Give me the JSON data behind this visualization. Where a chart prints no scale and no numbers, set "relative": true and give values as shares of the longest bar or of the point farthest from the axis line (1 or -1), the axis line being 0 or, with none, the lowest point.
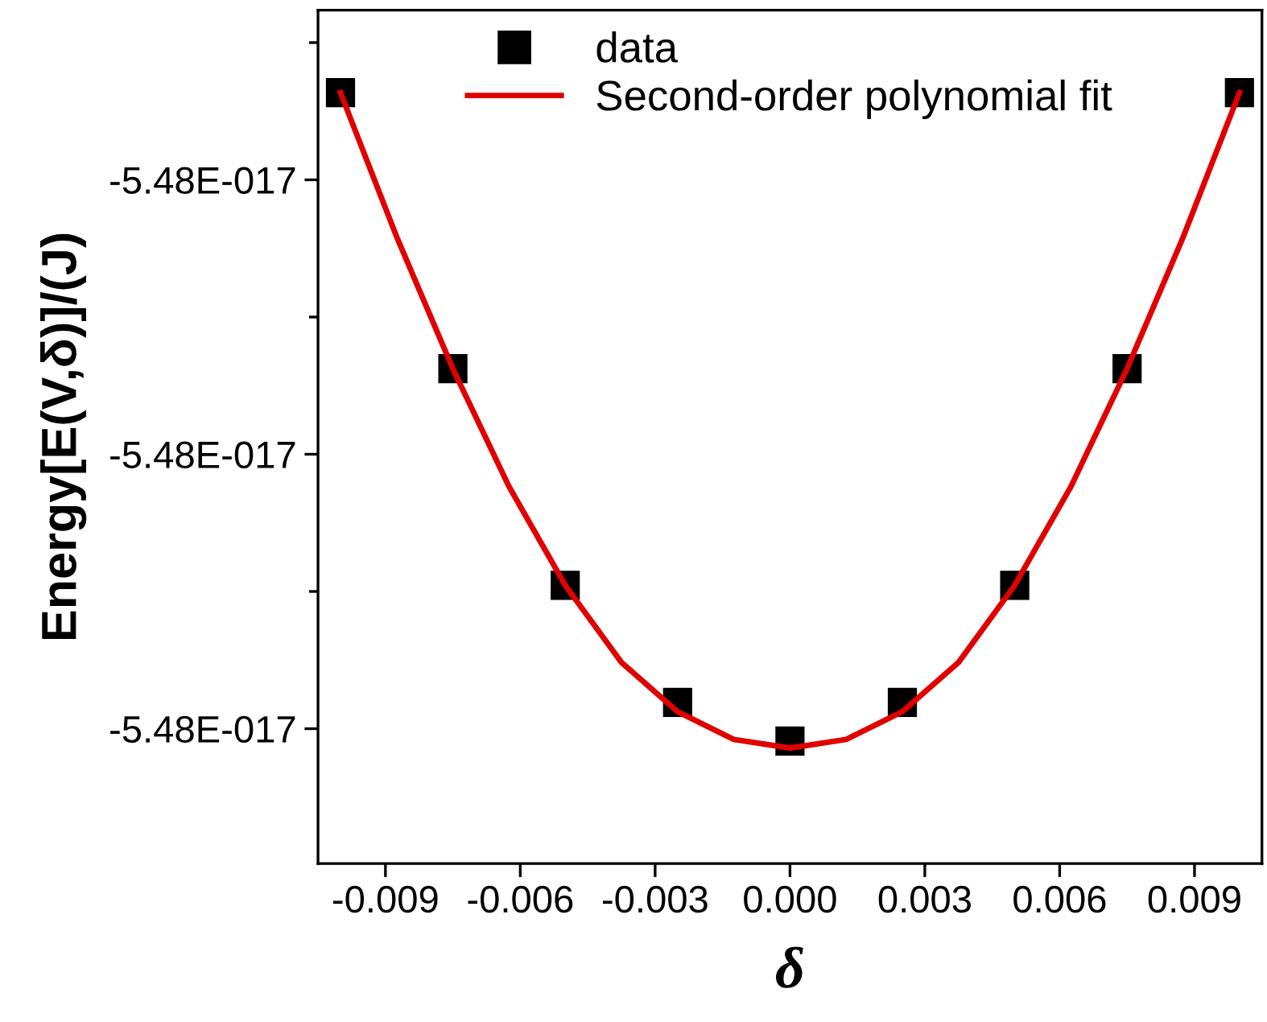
{
  "chart_data": {
    "type": "scatter",
    "relative": true,
    "xlabel": "δ",
    "ylabel": "Energy[E(V,δ)]/(J)",
    "annotations": [
      "-5.48E-017",
      "-5.48E-017",
      "-5.48E-017"
    ],
    "x": [
      -0.01,
      -0.0075,
      -0.005,
      -0.0025,
      0.0,
      0.0025,
      0.005,
      0.0075,
      0.01
    ],
    "series": [
      {
        "name": "data",
        "color": "#000000",
        "marker": "square",
        "values": [
          1.0,
          0.642,
          0.361,
          0.209,
          0.159,
          0.209,
          0.361,
          0.642,
          1.0
        ]
      },
      {
        "name": "Second-order polynomial fit",
        "type": "line",
        "color": "#e00000",
        "marker": "none",
        "line_style": "solid",
        "x": [
          -0.01,
          -0.00875,
          -0.0075,
          -0.00625,
          -0.005,
          -0.00375,
          -0.0025,
          -0.00125,
          0.0,
          0.00125,
          0.0025,
          0.00375,
          0.005,
          0.00625,
          0.0075,
          0.00875,
          0.01
        ],
        "values": [
          1.0,
          0.813,
          0.642,
          0.489,
          0.361,
          0.261,
          0.197,
          0.161,
          0.15,
          0.161,
          0.197,
          0.261,
          0.361,
          0.489,
          0.642,
          0.813,
          1.0
        ]
      }
    ],
    "xlim": [
      -0.0105,
      0.0105
    ],
    "xticks": [
      -0.009,
      -0.006,
      -0.003,
      {
        "value": 0.0,
        "label": "0.000"
      },
      0.003,
      0.006,
      0.009
    ],
    "grid": false,
    "legend": "top"
  }
}
